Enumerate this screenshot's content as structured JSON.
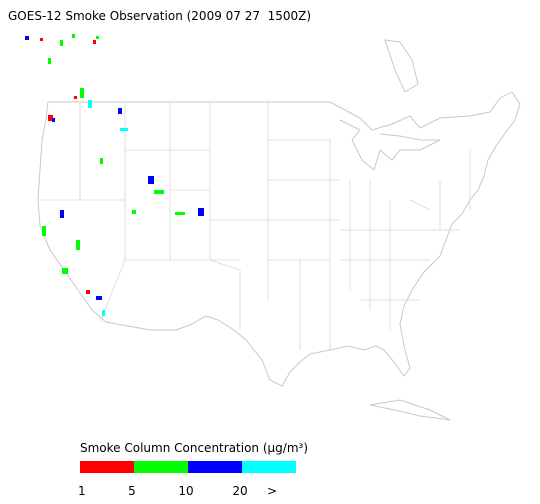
{
  "title": "GOES-12 Smoke Observation (2009 07 27  1500Z)",
  "legend": {
    "title": "Smoke Column Concentration (μg/m³)",
    "colors": [
      "#ff0000",
      "#00ff00",
      "#0000ff",
      "#00ffff"
    ],
    "labels": [
      1,
      5,
      10,
      20,
      ">"
    ]
  }
}
